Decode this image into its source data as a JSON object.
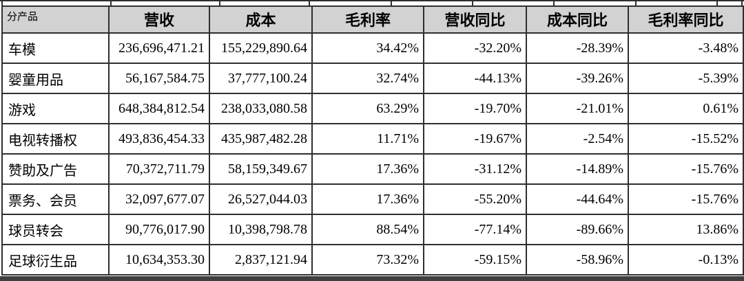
{
  "table": {
    "columns": [
      {
        "label": "分产品"
      },
      {
        "label": "营收"
      },
      {
        "label": "成本"
      },
      {
        "label": "毛利率"
      },
      {
        "label": "营收同比"
      },
      {
        "label": "成本同比"
      },
      {
        "label": "毛利率同比"
      }
    ],
    "rows": [
      [
        "车模",
        "236,696,471.21",
        "155,229,890.64",
        "34.42%",
        "-32.20%",
        "-28.39%",
        "-3.48%"
      ],
      [
        "婴童用品",
        "56,167,584.75",
        "37,777,100.24",
        "32.74%",
        "-44.13%",
        "-39.26%",
        "-5.39%"
      ],
      [
        "游戏",
        "648,384,812.54",
        "238,033,080.58",
        "63.29%",
        "-19.70%",
        "-21.01%",
        "0.61%"
      ],
      [
        "电视转播权",
        "493,836,454.33",
        "435,987,482.28",
        "11.71%",
        "-19.67%",
        "-2.54%",
        "-15.52%"
      ],
      [
        "赞助及广告",
        "70,372,711.79",
        "58,159,349.67",
        "17.36%",
        "-31.12%",
        "-14.89%",
        "-15.76%"
      ],
      [
        "票务、会员",
        "32,097,677.07",
        "26,527,044.03",
        "17.36%",
        "-55.20%",
        "-44.64%",
        "-15.76%"
      ],
      [
        "球员转会",
        "90,776,017.90",
        "10,398,798.78",
        "88.54%",
        "-77.14%",
        "-89.66%",
        "13.86%"
      ],
      [
        "足球衍生品",
        "10,634,353.30",
        "2,837,121.94",
        "73.32%",
        "-59.15%",
        "-58.96%",
        "-0.13%"
      ]
    ]
  },
  "colors": {
    "header_bg": "#d2d2d2",
    "border": "#2e2e2e",
    "bottom_band": "#3f3f3f",
    "cell_bg": "#ffffff"
  }
}
